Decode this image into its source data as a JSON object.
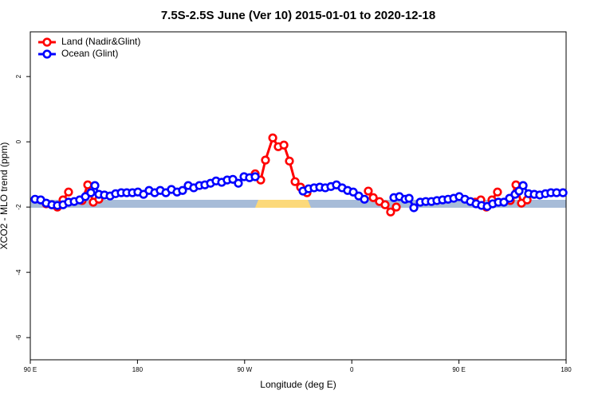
{
  "chart_data": {
    "type": "line",
    "title": "7.5S-2.5S June (Ver 10)   2015-01-01 to 2020-12-18",
    "xlabel": "Longitude (deg E)",
    "ylabel": "XCO2 - MLO trend (ppm)",
    "xlim": [
      0,
      360
    ],
    "ylim": [
      -6.68,
      3.37
    ],
    "xticks": [
      {
        "value": 0,
        "label": "90 E"
      },
      {
        "value": 72,
        "label": "180"
      },
      {
        "value": 144,
        "label": "90 W"
      },
      {
        "value": 216,
        "label": "0"
      },
      {
        "value": 288,
        "label": "90 E"
      },
      {
        "value": 360,
        "label": "180"
      }
    ],
    "yticks": [
      2,
      0,
      -2,
      -4,
      -6
    ],
    "legend": "top-left",
    "series": [
      {
        "name": "Land (Nadir&Glint)",
        "color": "#ff0000",
        "x": [
          10.7,
          14.5,
          18.2,
          22.0,
          25.7,
          null,
          34.8,
          38.6,
          42.3,
          46.1,
          null,
          151.1,
          154.8,
          158.0,
          162.9,
          166.6,
          170.4,
          174.1,
          177.9,
          181.6,
          185.9,
          null,
          227.1,
          230.4,
          234.6,
          238.4,
          242.1,
          245.9,
          null,
          298.9,
          302.7,
          306.4,
          310.2,
          313.9,
          null,
          322.5,
          326.3,
          330.0,
          333.8
        ],
        "values": [
          -1.9,
          -1.93,
          -2.0,
          -1.78,
          -1.54,
          null,
          -1.8,
          -1.32,
          -1.85,
          -1.76,
          null,
          -0.98,
          -1.17,
          -0.56,
          0.12,
          -0.15,
          -0.1,
          -0.59,
          -1.22,
          -1.39,
          -1.56,
          null,
          -1.51,
          -1.71,
          -1.83,
          -1.93,
          -2.15,
          -2.0,
          null,
          -1.85,
          -1.78,
          -2.0,
          -1.78,
          -1.54,
          null,
          -1.8,
          -1.32,
          -1.88,
          -1.78
        ]
      },
      {
        "name": "Ocean (Glint)",
        "color": "#0000ff",
        "x": [
          3.2,
          7.0,
          10.7,
          14.5,
          18.2,
          22.0,
          25.7,
          29.5,
          33.2,
          37.0,
          40.7,
          43.4,
          46.1,
          49.8,
          53.6,
          57.3,
          61.1,
          64.8,
          68.6,
          72.3,
          76.1,
          79.8,
          83.6,
          87.3,
          91.1,
          94.8,
          98.6,
          102.3,
          106.1,
          109.8,
          113.6,
          117.3,
          121.1,
          124.8,
          128.6,
          132.3,
          136.1,
          139.8,
          143.6,
          147.3,
          151.1,
          null,
          183.2,
          187.0,
          190.7,
          194.5,
          198.2,
          202.0,
          205.7,
          209.5,
          213.2,
          217.0,
          220.7,
          224.5,
          null,
          244.3,
          248.0,
          251.8,
          254.5,
          257.7,
          262.0,
          265.7,
          269.5,
          273.2,
          277.0,
          280.7,
          284.5,
          288.2,
          292.0,
          295.7,
          299.5,
          303.2,
          307.0,
          310.7,
          314.5,
          318.2,
          322.0,
          325.7,
          328.4,
          331.1,
          334.8,
          338.6,
          342.3,
          346.1,
          349.8,
          353.6,
          357.9
        ],
        "values": [
          -1.76,
          -1.78,
          -1.88,
          -1.93,
          -1.95,
          -1.93,
          -1.85,
          -1.83,
          -1.78,
          -1.68,
          -1.56,
          -1.34,
          -1.61,
          -1.63,
          -1.66,
          -1.59,
          -1.56,
          -1.56,
          -1.56,
          -1.54,
          -1.61,
          -1.49,
          -1.56,
          -1.49,
          -1.56,
          -1.46,
          -1.54,
          -1.49,
          -1.34,
          -1.41,
          -1.34,
          -1.32,
          -1.27,
          -1.2,
          -1.24,
          -1.17,
          -1.15,
          -1.27,
          -1.07,
          -1.1,
          -1.07,
          null,
          -1.51,
          -1.44,
          -1.41,
          -1.39,
          -1.41,
          -1.37,
          -1.32,
          -1.41,
          -1.49,
          -1.54,
          -1.66,
          -1.76,
          null,
          -1.71,
          -1.68,
          -1.76,
          -1.73,
          -2.02,
          -1.85,
          -1.83,
          -1.83,
          -1.8,
          -1.78,
          -1.76,
          -1.73,
          -1.68,
          -1.76,
          -1.83,
          -1.9,
          -1.95,
          -1.98,
          -1.9,
          -1.85,
          -1.85,
          -1.73,
          -1.61,
          -1.51,
          -1.34,
          -1.59,
          -1.61,
          -1.63,
          -1.59,
          -1.56,
          -1.56,
          -1.56
        ]
      }
    ]
  }
}
